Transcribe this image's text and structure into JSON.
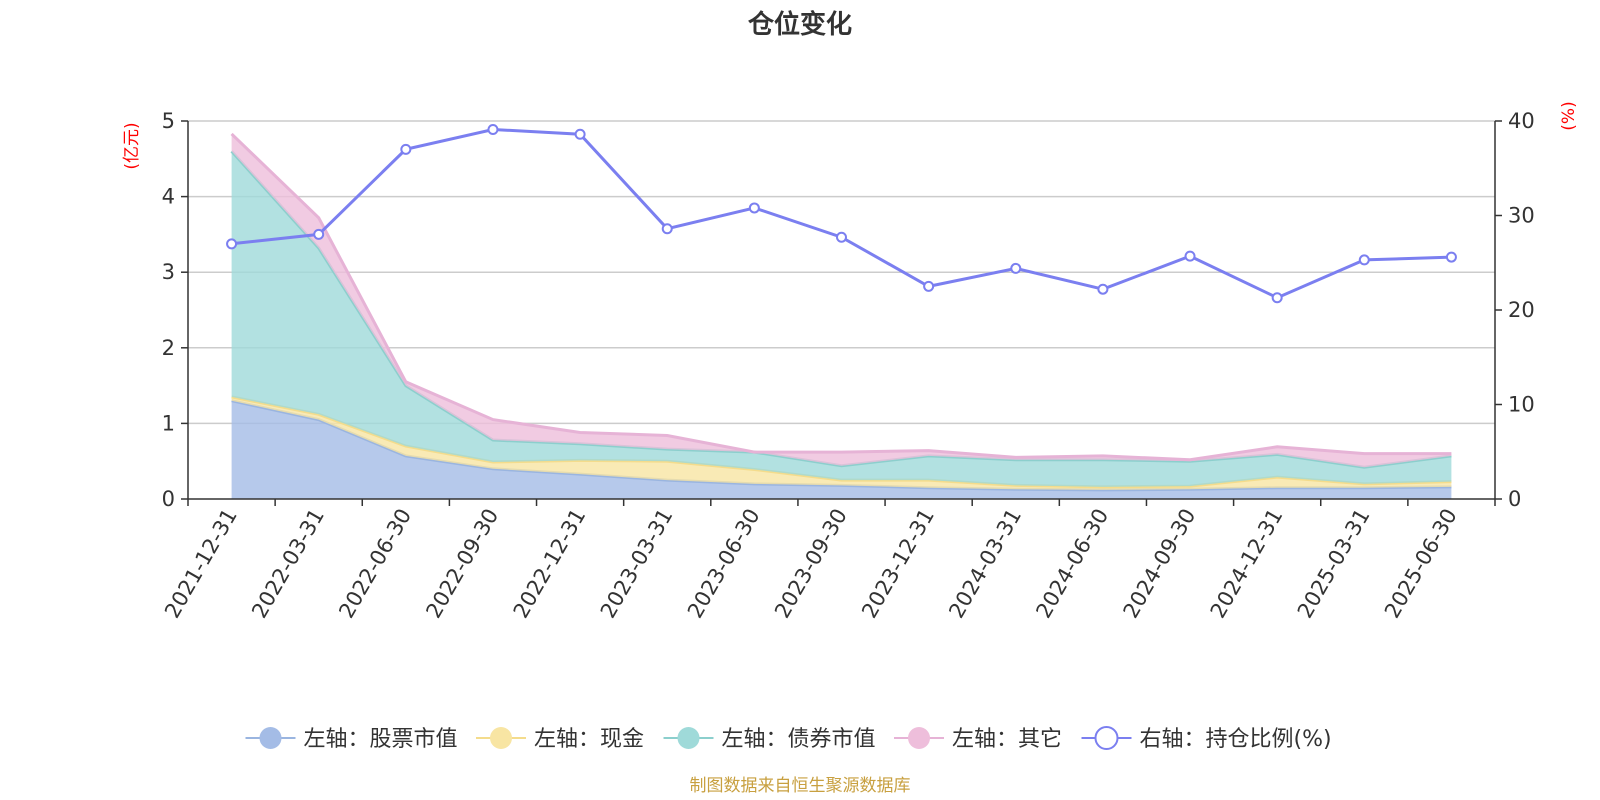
{
  "chart_data": {
    "type": "area+line",
    "title": "仓位变化",
    "source": "制图数据来自恒生聚源数据库",
    "left_axis": {
      "unit": "(亿元)",
      "ylim": [
        0,
        5
      ],
      "ticks": [
        "0",
        "1",
        "2",
        "3",
        "4",
        "5"
      ]
    },
    "right_axis": {
      "unit": "(%)",
      "ylim": [
        0,
        40
      ],
      "ticks": [
        "0",
        "10",
        "20",
        "30",
        "40"
      ]
    },
    "categories": [
      "2021-12-31",
      "2022-03-31",
      "2022-06-30",
      "2022-09-30",
      "2022-12-31",
      "2023-03-31",
      "2023-06-30",
      "2023-09-30",
      "2023-12-31",
      "2024-03-31",
      "2024-06-30",
      "2024-09-30",
      "2024-12-31",
      "2025-03-31",
      "2025-06-30"
    ],
    "stacked_series": [
      {
        "name": "左轴：股票市值",
        "color": "#a4bce6",
        "line": "#9ab5e0",
        "values": [
          1.3,
          1.05,
          0.57,
          0.4,
          0.33,
          0.25,
          0.2,
          0.18,
          0.15,
          0.13,
          0.12,
          0.13,
          0.15,
          0.15,
          0.16
        ]
      },
      {
        "name": "左轴：现金",
        "color": "#f8e5a3",
        "line": "#f4dc8c",
        "values": [
          0.05,
          0.07,
          0.13,
          0.09,
          0.18,
          0.25,
          0.19,
          0.07,
          0.1,
          0.05,
          0.04,
          0.04,
          0.14,
          0.05,
          0.07
        ]
      },
      {
        "name": "左轴：债券市值",
        "color": "#9fdad9",
        "line": "#8ccfcd",
        "values": [
          3.25,
          2.2,
          0.8,
          0.29,
          0.22,
          0.16,
          0.23,
          0.19,
          0.32,
          0.34,
          0.36,
          0.33,
          0.3,
          0.22,
          0.34
        ]
      },
      {
        "name": "左轴：其它",
        "color": "#eebedb",
        "line": "#e6b3d6",
        "values": [
          0.23,
          0.4,
          0.05,
          0.27,
          0.15,
          0.18,
          0.0,
          0.18,
          0.07,
          0.03,
          0.05,
          0.02,
          0.1,
          0.18,
          0.03
        ]
      }
    ],
    "line_series": {
      "name": "右轴：持仓比例(%)",
      "color": "#7b7ff0",
      "values": [
        27.0,
        28.0,
        37.0,
        39.1,
        38.6,
        28.6,
        30.8,
        27.7,
        22.5,
        24.4,
        22.2,
        25.7,
        21.3,
        25.3,
        25.6
      ]
    }
  }
}
